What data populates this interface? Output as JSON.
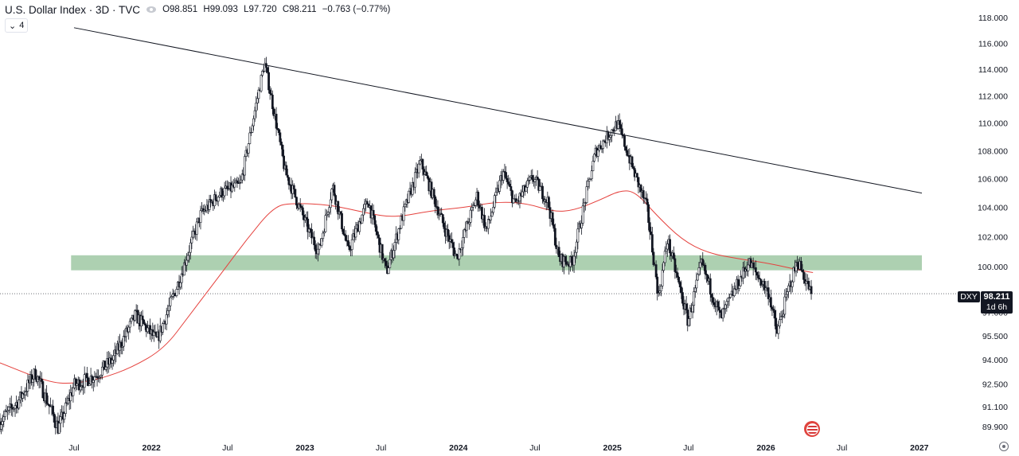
{
  "header": {
    "title": "U.S. Dollar Index · 3D · TVC",
    "open": "O98.851",
    "high": "H99.093",
    "low": "L97.720",
    "close": "C98.211",
    "change": "−0.763 (−0.77%)",
    "indicator_count": "4",
    "indicator_chevron": "⌄"
  },
  "price_labels": {
    "symbol": "DXY",
    "last": "98.211",
    "countdown": "1d 6h"
  },
  "icons": {
    "visibility": "eye-icon",
    "event": "us-flag-icon",
    "settings": "gear-icon"
  },
  "colors": {
    "candle": "#131722",
    "moving_average": "#e5413d",
    "support_zone": "#9fc8a3",
    "trendline": "#131722"
  },
  "chart_data": {
    "type": "candlestick",
    "y_scale": "log",
    "ylim": [
      89.2,
      119.0
    ],
    "x_axis_labels": [
      {
        "label": "Jul",
        "date": "2021-07-01"
      },
      {
        "label": "2022",
        "date": "2022-01-01"
      },
      {
        "label": "Jul",
        "date": "2022-07-01"
      },
      {
        "label": "2023",
        "date": "2023-01-01"
      },
      {
        "label": "Jul",
        "date": "2023-07-01"
      },
      {
        "label": "2024",
        "date": "2024-01-01"
      },
      {
        "label": "Jul",
        "date": "2024-07-01"
      },
      {
        "label": "2025",
        "date": "2025-01-01"
      },
      {
        "label": "Jul",
        "date": "2025-07-01"
      },
      {
        "label": "2026",
        "date": "2026-01-01"
      },
      {
        "label": "Jul",
        "date": "2026-07-01"
      },
      {
        "label": "2027",
        "date": "2027-01-01"
      }
    ],
    "y_ticks": [
      "118.000",
      "116.000",
      "114.000",
      "112.000",
      "110.000",
      "108.000",
      "106.000",
      "104.000",
      "102.000",
      "100.000",
      "97.000",
      "95.500",
      "94.000",
      "92.500",
      "91.100",
      "89.900"
    ],
    "last_price": 98.211,
    "price_anchors": [
      [
        "2021-01-06",
        90.2
      ],
      [
        "2021-02-20",
        91.5
      ],
      [
        "2021-03-31",
        93.2
      ],
      [
        "2021-05-25",
        89.8
      ],
      [
        "2021-07-01",
        92.4
      ],
      [
        "2021-08-20",
        93.0
      ],
      [
        "2021-10-01",
        94.0
      ],
      [
        "2021-11-24",
        96.8
      ],
      [
        "2022-01-14",
        95.2
      ],
      [
        "2022-03-07",
        99.0
      ],
      [
        "2022-04-28",
        103.5
      ],
      [
        "2022-06-14",
        105.0
      ],
      [
        "2022-08-01",
        105.6
      ],
      [
        "2022-09-27",
        114.5
      ],
      [
        "2022-11-15",
        106.5
      ],
      [
        "2023-01-13",
        102.2
      ],
      [
        "2023-02-03",
        101.0
      ],
      [
        "2023-03-08",
        105.5
      ],
      [
        "2023-04-14",
        101.0
      ],
      [
        "2023-05-31",
        104.5
      ],
      [
        "2023-07-14",
        99.6
      ],
      [
        "2023-08-22",
        103.5
      ],
      [
        "2023-10-03",
        107.2
      ],
      [
        "2023-11-29",
        102.6
      ],
      [
        "2023-12-28",
        100.6
      ],
      [
        "2024-02-14",
        104.8
      ],
      [
        "2024-03-08",
        102.4
      ],
      [
        "2024-04-16",
        106.5
      ],
      [
        "2024-05-15",
        104.2
      ],
      [
        "2024-06-26",
        106.1
      ],
      [
        "2024-08-01",
        104.4
      ],
      [
        "2024-08-27",
        100.5
      ],
      [
        "2024-09-27",
        100.2
      ],
      [
        "2024-11-22",
        107.9
      ],
      [
        "2025-01-13",
        110.0
      ],
      [
        "2025-02-20",
        106.6
      ],
      [
        "2025-03-24",
        104.0
      ],
      [
        "2025-04-21",
        98.0
      ],
      [
        "2025-05-12",
        101.8
      ],
      [
        "2025-06-30",
        96.4
      ],
      [
        "2025-08-01",
        100.2
      ],
      [
        "2025-09-16",
        96.6
      ],
      [
        "2025-11-21",
        100.3
      ],
      [
        "2026-01-09",
        98.2
      ],
      [
        "2026-01-27",
        95.6
      ],
      [
        "2026-02-27",
        98.8
      ],
      [
        "2026-03-18",
        100.4
      ],
      [
        "2026-04-07",
        99.0
      ],
      [
        "2026-04-20",
        98.2
      ]
    ],
    "moving_average": {
      "color": "#e5413d",
      "points": [
        [
          "2021-01-06",
          93.8
        ],
        [
          "2021-05-01",
          92.6
        ],
        [
          "2021-06-25",
          92.5
        ],
        [
          "2021-09-01",
          92.8
        ],
        [
          "2021-11-15",
          93.5
        ],
        [
          "2022-02-01",
          94.7
        ],
        [
          "2022-04-01",
          96.8
        ],
        [
          "2022-06-15",
          99.5
        ],
        [
          "2022-08-15",
          101.8
        ],
        [
          "2022-10-20",
          104.1
        ],
        [
          "2022-12-05",
          104.3
        ],
        [
          "2023-03-01",
          104.2
        ],
        [
          "2023-06-01",
          103.6
        ],
        [
          "2023-08-01",
          103.3
        ],
        [
          "2023-11-01",
          103.8
        ],
        [
          "2024-01-15",
          104.0
        ],
        [
          "2024-04-01",
          104.4
        ],
        [
          "2024-06-10",
          104.3
        ],
        [
          "2024-08-15",
          103.7
        ],
        [
          "2024-10-01",
          103.8
        ],
        [
          "2024-12-01",
          104.5
        ],
        [
          "2025-01-20",
          105.2
        ],
        [
          "2025-02-25",
          105.1
        ],
        [
          "2025-04-15",
          103.5
        ],
        [
          "2025-06-15",
          101.8
        ],
        [
          "2025-08-15",
          100.9
        ],
        [
          "2025-11-01",
          100.5
        ],
        [
          "2026-01-10",
          100.2
        ],
        [
          "2026-04-01",
          99.7
        ],
        [
          "2026-04-23",
          99.6
        ]
      ]
    },
    "support_zone": {
      "from": "2021-06-24",
      "to": "2027-01-07",
      "low": 99.75,
      "high": 100.75,
      "color": "#9fc8a3"
    },
    "trendline": {
      "start": [
        "2021-07-01",
        117.2
      ],
      "end": [
        "2027-01-07",
        105.0
      ]
    },
    "last_price_line": 98.211
  }
}
